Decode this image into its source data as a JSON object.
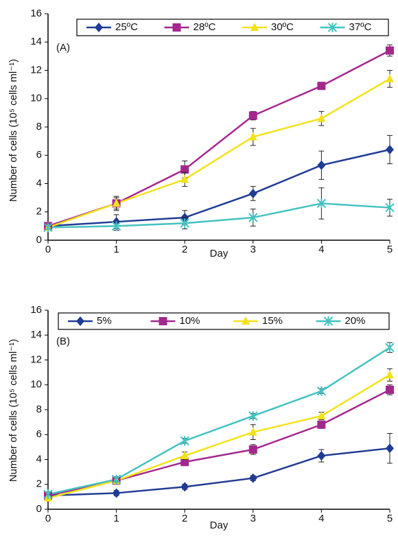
{
  "chart_data": [
    {
      "type": "line",
      "annotation": "(A)",
      "x_label": "Day",
      "y_label": "Number of cells (10⁵ cells ml⁻¹)",
      "x": [
        0,
        1,
        2,
        3,
        4,
        5
      ],
      "xlim": [
        0,
        5
      ],
      "xticks": [
        0,
        1,
        2,
        3,
        4,
        5
      ],
      "ylim": [
        0,
        16
      ],
      "yticks": [
        0,
        2,
        4,
        6,
        8,
        10,
        12,
        14,
        16
      ],
      "legend": "top",
      "series": [
        {
          "name": "25ºC",
          "color": "#1f3b94",
          "marker": "diamond",
          "values": [
            1.0,
            1.3,
            1.6,
            3.3,
            5.3,
            6.4
          ],
          "errors": [
            0.1,
            0.5,
            0.5,
            0.5,
            1.0,
            1.0
          ]
        },
        {
          "name": "28ºC",
          "color": "#a3288e",
          "marker": "square",
          "values": [
            1.0,
            2.6,
            5.0,
            8.8,
            10.9,
            13.4
          ],
          "errors": [
            0.2,
            0.4,
            0.6,
            0.3,
            0.2,
            0.4
          ]
        },
        {
          "name": "30ºC",
          "color": "#f2e21a",
          "marker": "triangle",
          "values": [
            0.9,
            2.6,
            4.3,
            7.3,
            8.6,
            11.4
          ],
          "errors": [
            0.1,
            0.5,
            0.5,
            0.6,
            0.5,
            0.6
          ]
        },
        {
          "name": "37ºC",
          "color": "#45c1c1",
          "marker": "x",
          "values": [
            0.9,
            1.0,
            1.2,
            1.6,
            2.6,
            2.3
          ],
          "errors": [
            0.1,
            0.3,
            0.4,
            0.6,
            1.1,
            0.6
          ]
        }
      ]
    },
    {
      "type": "line",
      "annotation": "(B)",
      "x_label": "Day",
      "y_label": "Number of cells (10⁵ cells ml⁻¹)",
      "x": [
        0,
        1,
        2,
        3,
        4,
        5
      ],
      "xlim": [
        0,
        5
      ],
      "xticks": [
        0,
        1,
        2,
        3,
        4,
        5
      ],
      "ylim": [
        0,
        16
      ],
      "yticks": [
        0,
        2,
        4,
        6,
        8,
        10,
        12,
        14,
        16
      ],
      "legend": "top",
      "series": [
        {
          "name": "5%",
          "color": "#1f3b94",
          "marker": "diamond",
          "values": [
            1.1,
            1.3,
            1.8,
            2.5,
            4.3,
            4.9
          ],
          "errors": [
            0.1,
            0.2,
            0.2,
            0.2,
            0.5,
            1.2
          ]
        },
        {
          "name": "10%",
          "color": "#a3288e",
          "marker": "square",
          "values": [
            1.1,
            2.3,
            3.8,
            4.8,
            6.8,
            9.6
          ],
          "errors": [
            0.2,
            0.2,
            0.3,
            0.4,
            0.3,
            0.4
          ]
        },
        {
          "name": "15%",
          "color": "#f2e21a",
          "marker": "triangle",
          "values": [
            0.9,
            2.3,
            4.3,
            6.2,
            7.5,
            10.8
          ],
          "errors": [
            0.1,
            0.2,
            0.3,
            0.6,
            0.3,
            0.5
          ]
        },
        {
          "name": "20%",
          "color": "#45c1c1",
          "marker": "x",
          "values": [
            1.2,
            2.4,
            5.5,
            7.5,
            9.5,
            13.0
          ],
          "errors": [
            0.1,
            0.2,
            0.2,
            0.2,
            0.2,
            0.4
          ]
        }
      ]
    }
  ]
}
